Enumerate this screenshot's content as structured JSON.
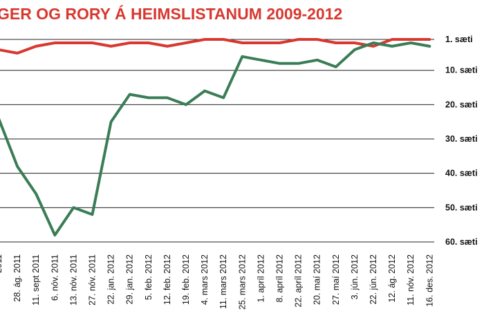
{
  "title": "GER OG RORY Á HEIMSLISTANUM 2009-2012",
  "chart_data": {
    "type": "line",
    "title": "GER OG RORY Á HEIMSLISTANUM 2009-2012",
    "xlabel": "",
    "ylabel": "",
    "ylim": [
      60,
      1
    ],
    "y_inverted": true,
    "grid": true,
    "yticks": [
      1,
      10,
      20,
      30,
      40,
      50,
      60
    ],
    "ytick_labels": [
      "1. sæti",
      "10. sæti",
      "20. sæti",
      "30. sæti",
      "40. sæti",
      "50. sæti",
      "60. sæti"
    ],
    "x": [
      "",
      "28. ág. 2011",
      "11. sept 2011",
      "6. nóv. 2011",
      "13. nóv. 2011",
      "27. nóv. 2011",
      "22. jan. 2012",
      "29. jan. 2012",
      "5. feb. 2012",
      "12. feb. 2012",
      "19. feb. 2012",
      "4. mars 2012",
      "11. mars 2012",
      "25. mars 2012",
      "1. apríl 2012",
      "8. apríl 2012",
      "22. apríl 2012",
      "20. maí 2012",
      "27. maí 2012",
      "3. jún. 2012",
      "22. jún. 2012",
      "12. ág. 2012",
      "11. nóv. 2012",
      "16. des. 2012"
    ],
    "x_visible_labels": [
      "2011",
      "28. ág. 2011",
      "11. sept 2011",
      "6. nóv. 2011",
      "13. nóv. 2011",
      "27. nóv. 2011",
      "22. jan. 2012",
      "29. jan. 2012",
      "5. feb. 2012",
      "12. feb. 2012",
      "19. feb. 2012",
      "4. mars 2012",
      "11. mars 2012",
      "25. mars 2012",
      "1. apríl 2012",
      "8. apríl 2012",
      "22. apríl 2012",
      "20. maí 2012",
      "27. maí 2012",
      "3. jún. 2012",
      "22. jún. 2012",
      "12. ág. 2012",
      "11. nóv. 2012",
      "16. des. 2012"
    ],
    "series": [
      {
        "color": "#d8382f",
        "values": [
          4,
          5,
          3,
          2,
          2,
          2,
          3,
          2,
          2,
          3,
          2,
          1,
          1,
          2,
          2,
          2,
          1,
          1,
          2,
          2,
          3,
          1,
          1,
          1
        ]
      },
      {
        "color": "#3a7d56",
        "values": [
          24,
          38,
          46,
          58,
          50,
          52,
          25,
          17,
          18,
          18,
          20,
          16,
          18,
          6,
          7,
          8,
          8,
          7,
          9,
          4,
          2,
          3,
          2,
          3
        ]
      }
    ]
  }
}
